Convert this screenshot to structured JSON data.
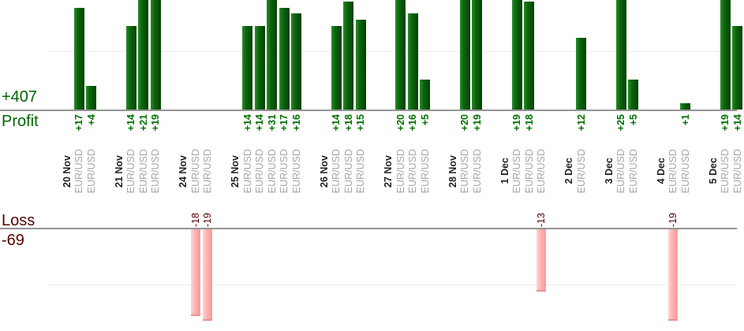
{
  "chart_data": {
    "type": "bar",
    "title": "",
    "profit_axis": {
      "axis_label": "Profit",
      "total_label": "+407",
      "total_value": 407,
      "gridline_value": 10,
      "text_color": "#006600"
    },
    "loss_axis": {
      "axis_label": "Loss",
      "total_label": "-69",
      "total_value": -69,
      "gridline_value": -10,
      "text_color": "#550000"
    },
    "legend": "none",
    "grid": "faint horizontal lines at +10 and -10",
    "bar_colors": {
      "profit_gradient": [
        "#2d8c2d",
        "#0e660e",
        "#024202"
      ],
      "loss_gradient": [
        "#ffd6d6",
        "#ffb3b3",
        "#f89b9b"
      ],
      "loss_border": "#eb9090"
    },
    "label_colors": {
      "date_text": "#1f1f1f",
      "symbol_text": "#a6a6a6",
      "profit_value_text": "#007000",
      "loss_value_text": "#550000"
    },
    "groups": [
      {
        "date": "20 Nov",
        "trades": [
          {
            "symbol": "EUR/USD",
            "value": 17,
            "label": "+17"
          },
          {
            "symbol": "EUR/USD",
            "value": 4,
            "label": "+4"
          }
        ]
      },
      {
        "date": "21 Nov",
        "trades": [
          {
            "symbol": "EUR/USD",
            "value": 14,
            "label": "+14"
          },
          {
            "symbol": "EUR/USD",
            "value": 21,
            "label": "+21"
          },
          {
            "symbol": "EUR/USD",
            "value": 19,
            "label": "+19"
          }
        ]
      },
      {
        "date": "24 Nov",
        "trades": [
          {
            "symbol": "EUR/USD",
            "value": -18,
            "label": "-18"
          },
          {
            "symbol": "EUR/USD",
            "value": -19,
            "label": "-19"
          }
        ]
      },
      {
        "date": "25 Nov",
        "trades": [
          {
            "symbol": "EUR/USD",
            "value": 14,
            "label": "+14"
          },
          {
            "symbol": "EUR/USD",
            "value": 14,
            "label": "+14"
          },
          {
            "symbol": "EUR/USD",
            "value": 31,
            "label": "+31"
          },
          {
            "symbol": "EUR/USD",
            "value": 17,
            "label": "+17"
          },
          {
            "symbol": "EUR/USD",
            "value": 16,
            "label": "+16"
          }
        ]
      },
      {
        "date": "26 Nov",
        "trades": [
          {
            "symbol": "EUR/USD",
            "value": 14,
            "label": "+14"
          },
          {
            "symbol": "EUR/USD",
            "value": 18,
            "label": "+18"
          },
          {
            "symbol": "EUR/USD",
            "value": 15,
            "label": "+15"
          }
        ]
      },
      {
        "date": "27 Nov",
        "trades": [
          {
            "symbol": "EUR/USD",
            "value": 20,
            "label": "+20"
          },
          {
            "symbol": "EUR/USD",
            "value": 16,
            "label": "+16"
          },
          {
            "symbol": "EUR/USD",
            "value": 5,
            "label": "+5"
          }
        ]
      },
      {
        "date": "28 Nov",
        "trades": [
          {
            "symbol": "EUR/USD",
            "value": 20,
            "label": "+20"
          },
          {
            "symbol": "EUR/USD",
            "value": 19,
            "label": "+19"
          }
        ]
      },
      {
        "date": "1 Dec",
        "trades": [
          {
            "symbol": "EUR/USD",
            "value": 19,
            "label": "+19"
          },
          {
            "symbol": "EUR/USD",
            "value": 18,
            "label": "+18"
          },
          {
            "symbol": "EUR/USD",
            "value": -13,
            "label": "-13"
          }
        ]
      },
      {
        "date": "2 Dec",
        "trades": [
          {
            "symbol": "EUR/USD",
            "value": 12,
            "label": "+12"
          }
        ]
      },
      {
        "date": "3 Dec",
        "trades": [
          {
            "symbol": "EUR/USD",
            "value": 25,
            "label": "+25"
          },
          {
            "symbol": "EUR/USD",
            "value": 5,
            "label": "+5"
          }
        ]
      },
      {
        "date": "4 Dec",
        "trades": [
          {
            "symbol": "EUR/USD",
            "value": -19,
            "label": "-19"
          },
          {
            "symbol": "EUR/USD",
            "value": 1,
            "label": "+1"
          }
        ]
      },
      {
        "date": "5 Dec",
        "trades": [
          {
            "symbol": "EUR/USD",
            "value": 19,
            "label": "+19"
          },
          {
            "symbol": "EUR/USD",
            "value": 14,
            "label": "+14"
          }
        ]
      }
    ]
  }
}
